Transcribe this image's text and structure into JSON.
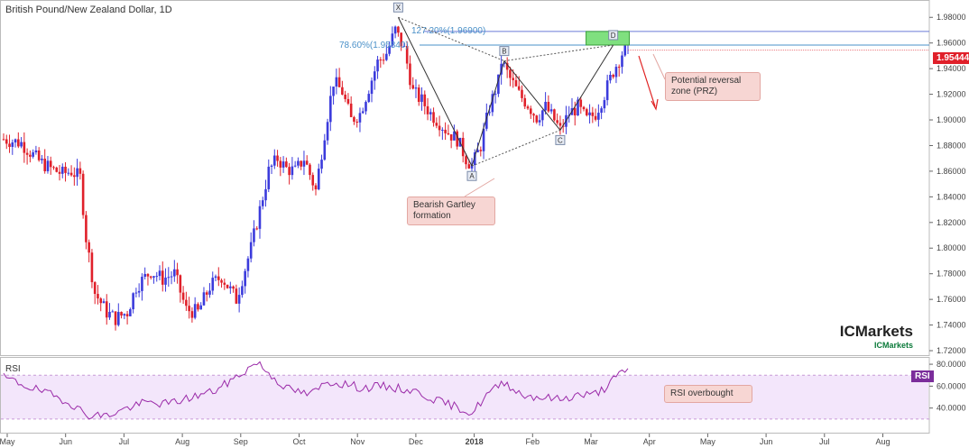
{
  "title": "British Pound/New Zealand Dollar, 1D",
  "colors": {
    "bull": "#3b3bdc",
    "bear": "#e0202a",
    "grid": "#e8e8e8",
    "axis": "#666666",
    "prz_fill": "#7fe07f",
    "rsi_fill": "#f3e6fb",
    "rsi_line": "#9a2aa8",
    "price_badge": "#e0202a",
    "rsi_badge": "#7b2d9b",
    "fib_line": "#6b7bd6",
    "fib_label": "#4a90c8"
  },
  "chart_data": {
    "type": "candlestick",
    "title": "British Pound/New Zealand Dollar, 1D",
    "y_ticks": [
      "1.98000",
      "1.96000",
      "1.94000",
      "1.92000",
      "1.90000",
      "1.88000",
      "1.86000",
      "1.84000",
      "1.82000",
      "1.80000",
      "1.78000",
      "1.76000",
      "1.74000",
      "1.72000"
    ],
    "ylim": [
      1.7165,
      1.9865
    ],
    "x_ticks": [
      "May",
      "Jun",
      "Jul",
      "Aug",
      "Sep",
      "Oct",
      "Nov",
      "Dec",
      "2018",
      "Feb",
      "Mar",
      "Apr",
      "May",
      "Jun",
      "Jul",
      "Aug"
    ],
    "last_price": "1.95444",
    "close_path": [
      [
        0,
        1.885
      ],
      [
        6,
        1.882
      ],
      [
        12,
        1.868
      ],
      [
        16,
        1.862
      ],
      [
        20,
        1.858
      ],
      [
        23,
        1.86
      ],
      [
        26,
        1.855
      ],
      [
        28,
        1.808
      ],
      [
        31,
        1.765
      ],
      [
        35,
        1.75
      ],
      [
        38,
        1.745
      ],
      [
        42,
        1.75
      ],
      [
        45,
        1.77
      ],
      [
        50,
        1.782
      ],
      [
        54,
        1.776
      ],
      [
        58,
        1.78
      ],
      [
        62,
        1.752
      ],
      [
        66,
        1.75
      ],
      [
        70,
        1.77
      ],
      [
        74,
        1.778
      ],
      [
        79,
        1.76
      ],
      [
        84,
        1.8
      ],
      [
        87,
        1.83
      ],
      [
        90,
        1.86
      ],
      [
        93,
        1.87
      ],
      [
        96,
        1.862
      ],
      [
        99,
        1.86
      ],
      [
        102,
        1.87
      ],
      [
        106,
        1.845
      ],
      [
        109,
        1.89
      ],
      [
        112,
        1.93
      ],
      [
        115,
        1.922
      ],
      [
        118,
        1.9
      ],
      [
        121,
        1.905
      ],
      [
        124,
        1.925
      ],
      [
        127,
        1.945
      ],
      [
        130,
        1.952
      ],
      [
        133,
        1.97
      ],
      [
        136,
        1.955
      ],
      [
        139,
        1.922
      ],
      [
        142,
        1.915
      ],
      [
        145,
        1.905
      ],
      [
        148,
        1.898
      ],
      [
        151,
        1.89
      ],
      [
        154,
        1.885
      ],
      [
        157,
        1.87
      ],
      [
        159,
        1.864
      ],
      [
        162,
        1.88
      ],
      [
        165,
        1.91
      ],
      [
        168,
        1.93
      ],
      [
        169,
        1.946
      ],
      [
        172,
        1.932
      ],
      [
        175,
        1.92
      ],
      [
        178,
        1.912
      ],
      [
        181,
        1.902
      ],
      [
        184,
        1.91
      ],
      [
        187,
        1.9
      ],
      [
        189,
        1.892
      ],
      [
        192,
        1.905
      ],
      [
        195,
        1.91
      ],
      [
        198,
        1.9
      ],
      [
        201,
        1.905
      ],
      [
        204,
        1.92
      ],
      [
        207,
        1.938
      ],
      [
        210,
        1.952
      ],
      [
        212,
        1.955
      ]
    ],
    "harmonic_pattern": {
      "name": "Bearish Gartley formation",
      "points": [
        {
          "label": "X",
          "bar": 134,
          "price": 1.98
        },
        {
          "label": "A",
          "bar": 159,
          "price": 1.864
        },
        {
          "label": "B",
          "bar": 170,
          "price": 1.946
        },
        {
          "label": "C",
          "bar": 189,
          "price": 1.892
        },
        {
          "label": "D",
          "bar": 207,
          "price": 1.9584
        }
      ]
    },
    "fib_levels": [
      {
        "label": "127.20%(1.96900)",
        "price": 1.969
      },
      {
        "label": "78.60%(1.95840)",
        "price": 1.9584
      }
    ],
    "prz": {
      "label": "Potential reversal\nzone (PRZ)",
      "from_bar": 199,
      "to_bar": 210,
      "low": 1.9584,
      "high": 1.969
    },
    "rsi": {
      "label": "RSI",
      "y_ticks": [
        "80.0000",
        "60.0000",
        "40.0000"
      ],
      "ylim": [
        20,
        85
      ],
      "levels": [
        70,
        30
      ],
      "annotation": "RSI overbought",
      "path": [
        [
          0,
          68
        ],
        [
          8,
          60
        ],
        [
          16,
          52
        ],
        [
          22,
          46
        ],
        [
          28,
          34
        ],
        [
          35,
          33
        ],
        [
          42,
          40
        ],
        [
          48,
          45
        ],
        [
          56,
          44
        ],
        [
          64,
          50
        ],
        [
          72,
          56
        ],
        [
          80,
          70
        ],
        [
          86,
          82
        ],
        [
          90,
          72
        ],
        [
          96,
          58
        ],
        [
          104,
          52
        ],
        [
          110,
          64
        ],
        [
          116,
          62
        ],
        [
          122,
          58
        ],
        [
          128,
          60
        ],
        [
          134,
          58
        ],
        [
          140,
          55
        ],
        [
          148,
          46
        ],
        [
          155,
          40
        ],
        [
          159,
          35
        ],
        [
          164,
          52
        ],
        [
          170,
          64
        ],
        [
          176,
          52
        ],
        [
          182,
          50
        ],
        [
          189,
          48
        ],
        [
          195,
          52
        ],
        [
          200,
          52
        ],
        [
          204,
          58
        ],
        [
          207,
          66
        ],
        [
          210,
          72
        ],
        [
          212,
          74
        ]
      ]
    }
  },
  "callouts": {
    "gartley": "Bearish Gartley\nformation",
    "prz": "Potential reversal\nzone (PRZ)",
    "rsi": "RSI overbought"
  },
  "logo": {
    "name": "ICMarkets",
    "sub": "ICMarkets"
  }
}
